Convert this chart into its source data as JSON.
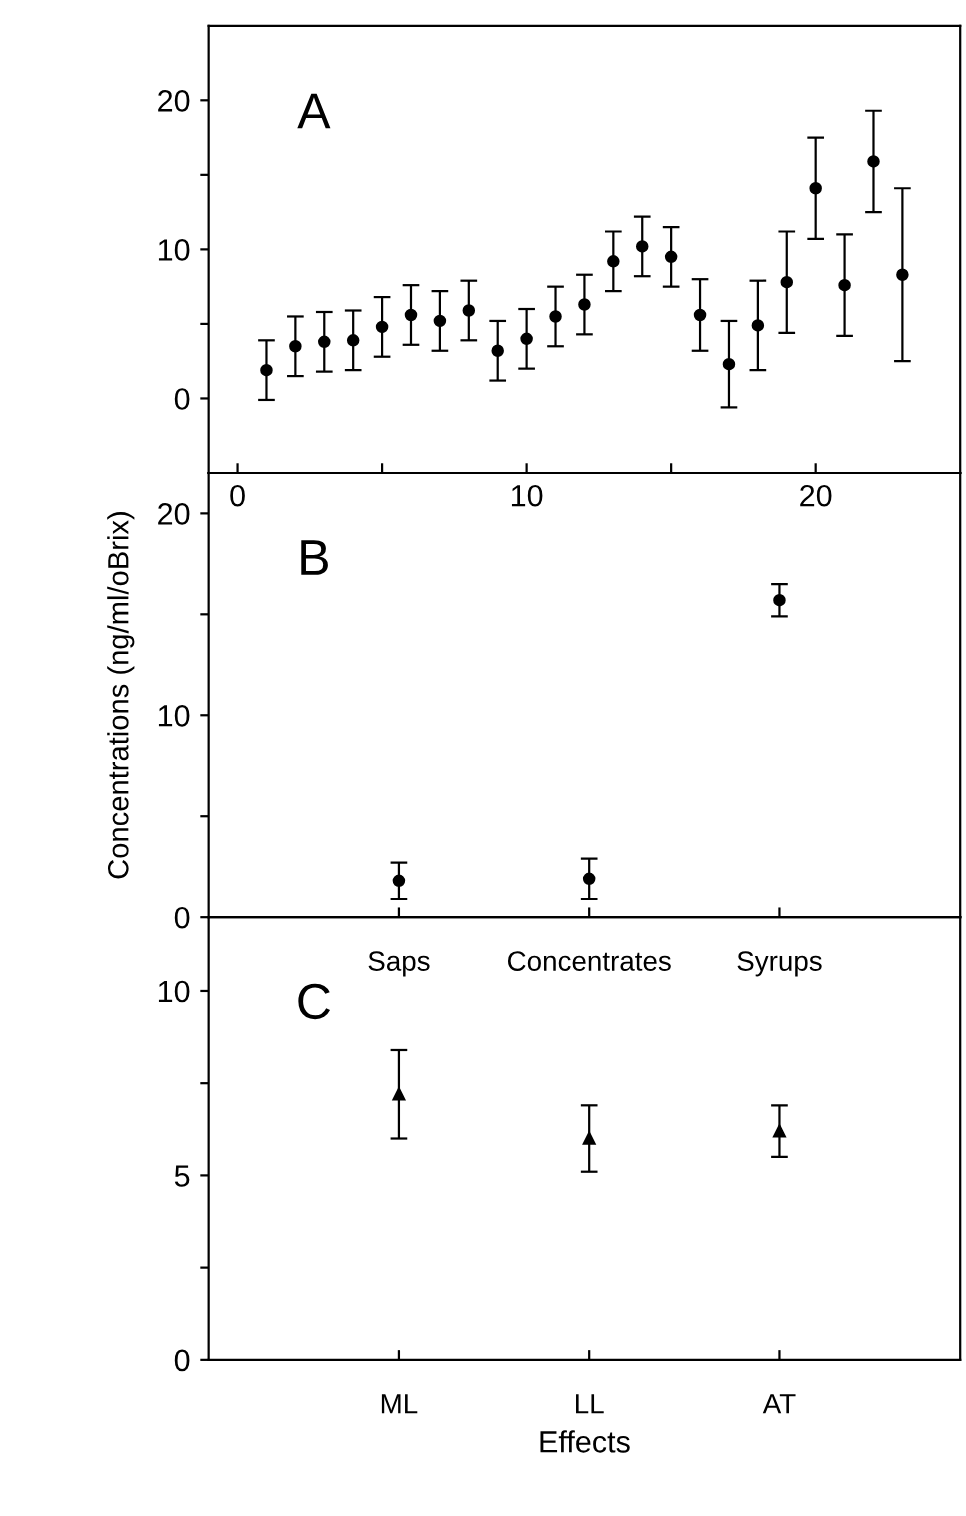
{
  "chart_data": [
    {
      "type": "scatter",
      "annotations": [
        "A"
      ],
      "x": [
        1,
        2,
        3,
        4,
        5,
        6,
        7,
        8,
        9,
        10,
        11,
        12,
        13,
        14,
        15,
        16,
        17,
        18,
        19,
        20,
        21,
        22,
        23
      ],
      "series": [
        {
          "color": "#000000",
          "values": [
            1.9,
            3.5,
            3.8,
            3.9,
            4.8,
            5.6,
            5.2,
            5.9,
            3.2,
            4.0,
            5.5,
            6.3,
            9.2,
            10.2,
            9.5,
            5.6,
            2.3,
            4.9,
            7.8,
            14.1,
            7.6,
            15.9,
            8.3
          ],
          "errors": [
            2.0,
            2.0,
            2.0,
            2.0,
            2.0,
            2.0,
            2.0,
            2.0,
            2.0,
            2.0,
            2.0,
            2.0,
            2.0,
            2.0,
            2.0,
            2.4,
            2.9,
            3.0,
            3.4,
            3.4,
            3.4,
            3.4,
            5.8
          ]
        }
      ],
      "marker": "circle",
      "xlim": [
        -1,
        25
      ],
      "xticks": [
        0,
        {
          "value": 5,
          "label": null
        },
        10,
        {
          "value": 15,
          "label": null
        },
        20
      ],
      "ylim": [
        -5,
        25
      ],
      "yticks": [
        0,
        {
          "value": 5,
          "label": null
        },
        10,
        {
          "value": 15,
          "label": null
        },
        20
      ]
    },
    {
      "type": "scatter",
      "annotations": [
        "B"
      ],
      "ylabel": "Concentrations (ng/ml/oBrix)",
      "categories": [
        "Saps",
        "Concentrates",
        "Syrups"
      ],
      "series": [
        {
          "color": "#000000",
          "values": [
            1.8,
            1.9,
            15.7
          ],
          "errors": [
            0.9,
            1.0,
            0.8
          ]
        }
      ],
      "marker": "circle",
      "ylim": [
        0,
        22
      ],
      "yticks": [
        0,
        {
          "value": 5,
          "label": null
        },
        10,
        {
          "value": 15,
          "label": null
        },
        20
      ]
    },
    {
      "type": "scatter",
      "annotations": [
        "C"
      ],
      "xlabel": "Effects",
      "categories": [
        "ML",
        "LL",
        "AT"
      ],
      "series": [
        {
          "color": "#000000",
          "values": [
            7.2,
            6.0,
            6.2
          ],
          "errors": [
            1.2,
            0.9,
            0.7
          ]
        }
      ],
      "marker": "triangle",
      "ylim": [
        0,
        12
      ],
      "yticks": [
        0,
        {
          "value": 2.5,
          "label": null
        },
        5,
        {
          "value": 7.5,
          "label": null
        },
        10
      ]
    }
  ]
}
